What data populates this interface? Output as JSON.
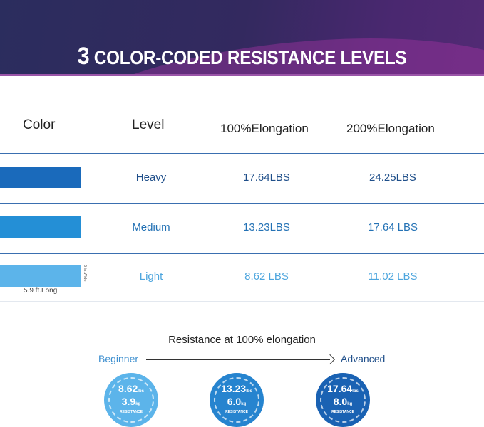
{
  "banner": {
    "number": "3",
    "title": "COLOR-CODED RESISTANCE LEVELS"
  },
  "table": {
    "headers": [
      "Color",
      "Level",
      "100%Elongation",
      "200%Elongation"
    ],
    "rows": [
      {
        "color": "#1a6abb",
        "level": "Heavy",
        "e100": "17.64LBS",
        "e200": "24.25LBS",
        "text_color": "#1f4f8a"
      },
      {
        "color": "#248fd6",
        "level": "Medium",
        "e100": "13.23LBS",
        "e200": "17.64 LBS",
        "text_color": "#2472b5"
      },
      {
        "color": "#5cb4ea",
        "level": "Light",
        "e100": "8.62 LBS",
        "e200": "11.02 LBS",
        "text_color": "#4ea6de"
      }
    ],
    "width_label": "6 in.Wide",
    "length_label": "5.9 ft.Long"
  },
  "scale": {
    "title": "Resistance at 100% elongation",
    "start": "Beginner",
    "end": "Advanced",
    "badges": [
      {
        "lbs": "8.62",
        "kg": "3.9",
        "label": "RESISTANCE",
        "color": "#5cb4ea",
        "lbs_unit": "lbs",
        "kg_unit": "kg"
      },
      {
        "lbs": "13.23",
        "kg": "6.0",
        "label": "RESISTANCE",
        "color": "#2684cf",
        "lbs_unit": "lbs",
        "kg_unit": "kg"
      },
      {
        "lbs": "17.64",
        "kg": "8.0",
        "label": "RESISTANCE",
        "color": "#1a62b3",
        "lbs_unit": "lbs",
        "kg_unit": "kg"
      }
    ]
  }
}
